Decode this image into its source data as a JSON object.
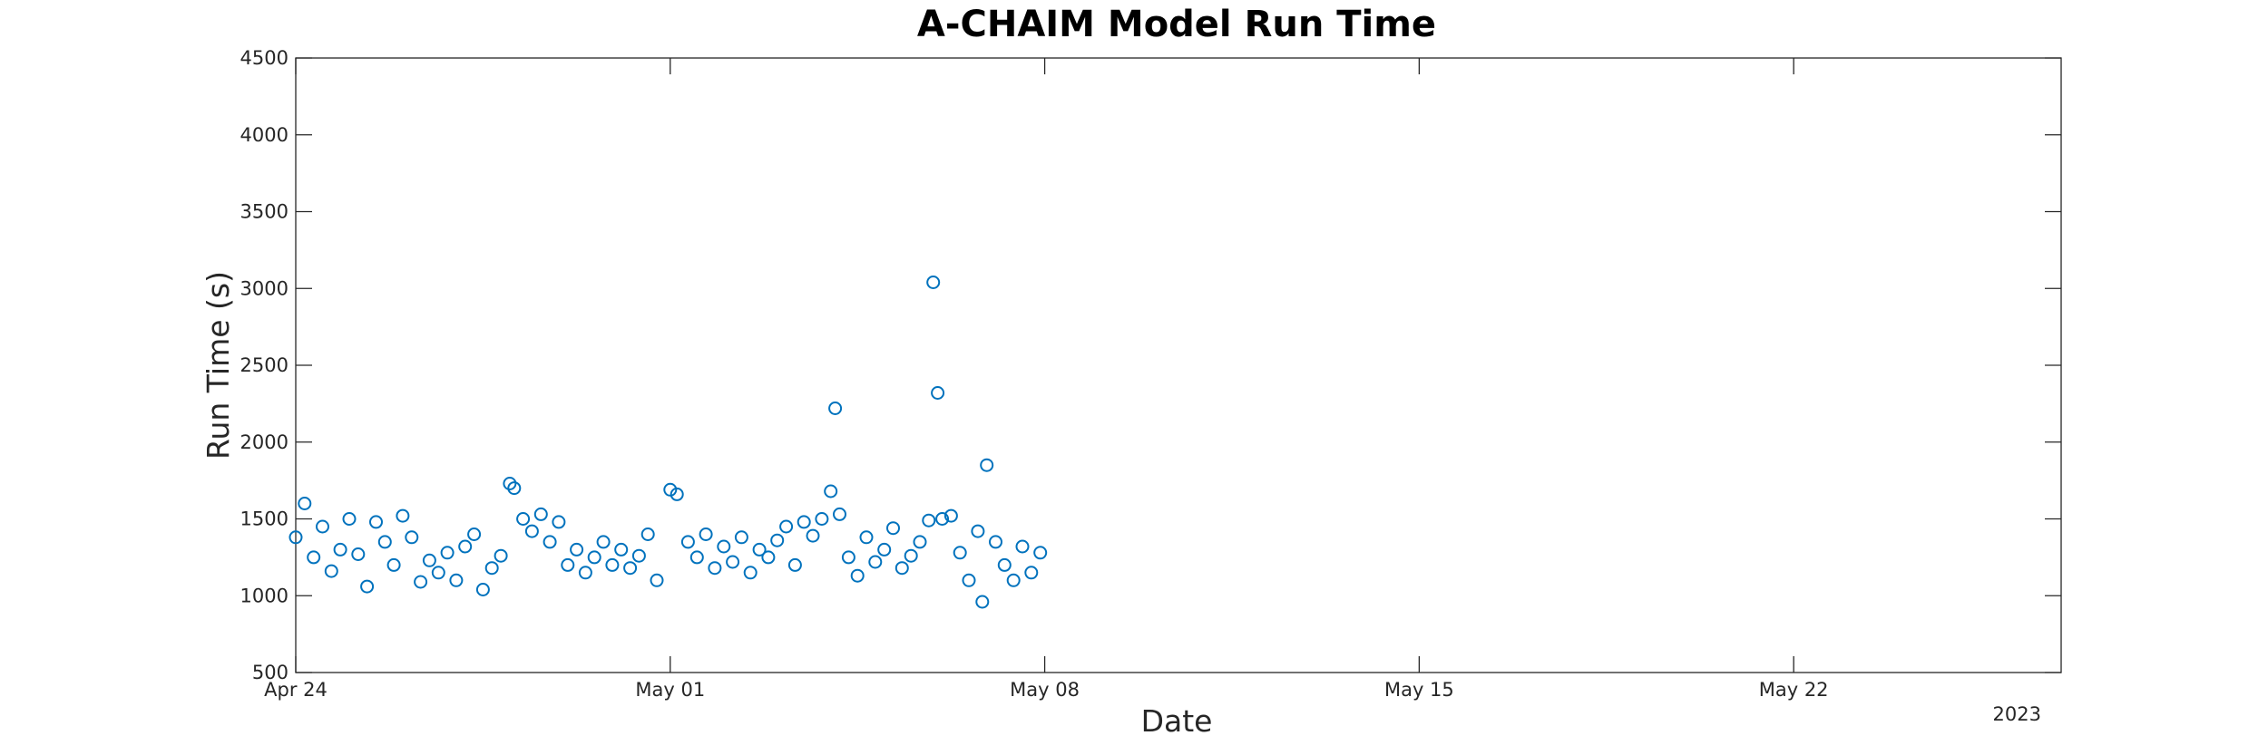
{
  "chart_data": {
    "type": "scatter",
    "title": "A-CHAIM Model Run Time",
    "xlabel": "Date",
    "ylabel": "Run Time (s)",
    "year_label": "2023",
    "marker": "circle-open",
    "color": "#0072BD",
    "grid": false,
    "legend": "none",
    "xlim": [
      "2023-04-24",
      "2023-05-27"
    ],
    "ylim": [
      500,
      4500
    ],
    "x_ticks": [
      {
        "date": "2023-04-24",
        "label": "Apr 24"
      },
      {
        "date": "2023-05-01",
        "label": "May 01"
      },
      {
        "date": "2023-05-08",
        "label": "May 08"
      },
      {
        "date": "2023-05-15",
        "label": "May 15"
      },
      {
        "date": "2023-05-22",
        "label": "May 22"
      }
    ],
    "y_ticks": [
      500,
      1000,
      1500,
      2000,
      2500,
      3000,
      3500,
      4000,
      4500
    ],
    "sampling_note": "Runs roughly every hour from 2023-04-24 to 2023-05-26; representative subset of points read from the figure.",
    "points": [
      [
        "2023-04-24T00:00",
        1380
      ],
      [
        "2023-04-24T04:00",
        1600
      ],
      [
        "2023-04-24T08:00",
        1250
      ],
      [
        "2023-04-24T12:00",
        1450
      ],
      [
        "2023-04-24T16:00",
        1160
      ],
      [
        "2023-04-24T20:00",
        1300
      ],
      [
        "2023-04-25T00:00",
        1500
      ],
      [
        "2023-04-25T04:00",
        1270
      ],
      [
        "2023-04-25T08:00",
        1060
      ],
      [
        "2023-04-25T12:00",
        1480
      ],
      [
        "2023-04-25T16:00",
        1350
      ],
      [
        "2023-04-25T20:00",
        1200
      ],
      [
        "2023-04-26T00:00",
        1520
      ],
      [
        "2023-04-26T04:00",
        1380
      ],
      [
        "2023-04-26T08:00",
        1090
      ],
      [
        "2023-04-26T12:00",
        1230
      ],
      [
        "2023-04-26T16:00",
        1150
      ],
      [
        "2023-04-26T20:00",
        1280
      ],
      [
        "2023-04-27T00:00",
        1100
      ],
      [
        "2023-04-27T04:00",
        1320
      ],
      [
        "2023-04-27T08:00",
        1400
      ],
      [
        "2023-04-27T12:00",
        1040
      ],
      [
        "2023-04-27T16:00",
        1180
      ],
      [
        "2023-04-27T20:00",
        1260
      ],
      [
        "2023-04-28T00:00",
        1730
      ],
      [
        "2023-04-28T02:00",
        1700
      ],
      [
        "2023-04-28T06:00",
        1500
      ],
      [
        "2023-04-28T10:00",
        1420
      ],
      [
        "2023-04-28T14:00",
        1530
      ],
      [
        "2023-04-28T18:00",
        1350
      ],
      [
        "2023-04-28T22:00",
        1480
      ],
      [
        "2023-04-29T02:00",
        1200
      ],
      [
        "2023-04-29T06:00",
        1300
      ],
      [
        "2023-04-29T10:00",
        1150
      ],
      [
        "2023-04-29T14:00",
        1250
      ],
      [
        "2023-04-29T18:00",
        1350
      ],
      [
        "2023-04-29T22:00",
        1200
      ],
      [
        "2023-04-30T02:00",
        1300
      ],
      [
        "2023-04-30T06:00",
        1180
      ],
      [
        "2023-04-30T10:00",
        1260
      ],
      [
        "2023-04-30T14:00",
        1400
      ],
      [
        "2023-04-30T18:00",
        1100
      ],
      [
        "2023-05-01T00:00",
        1690
      ],
      [
        "2023-05-01T03:00",
        1660
      ],
      [
        "2023-05-01T08:00",
        1350
      ],
      [
        "2023-05-01T12:00",
        1250
      ],
      [
        "2023-05-01T16:00",
        1400
      ],
      [
        "2023-05-01T20:00",
        1180
      ],
      [
        "2023-05-02T00:00",
        1320
      ],
      [
        "2023-05-02T04:00",
        1220
      ],
      [
        "2023-05-02T08:00",
        1380
      ],
      [
        "2023-05-02T12:00",
        1150
      ],
      [
        "2023-05-02T16:00",
        1300
      ],
      [
        "2023-05-02T20:00",
        1250
      ],
      [
        "2023-05-03T00:00",
        1360
      ],
      [
        "2023-05-03T04:00",
        1450
      ],
      [
        "2023-05-03T08:00",
        1200
      ],
      [
        "2023-05-03T12:00",
        1480
      ],
      [
        "2023-05-03T16:00",
        1390
      ],
      [
        "2023-05-03T20:00",
        1500
      ],
      [
        "2023-05-04T00:00",
        1680
      ],
      [
        "2023-05-04T02:00",
        2220
      ],
      [
        "2023-05-04T04:00",
        1530
      ],
      [
        "2023-05-04T08:00",
        1250
      ],
      [
        "2023-05-04T12:00",
        1130
      ],
      [
        "2023-05-04T16:00",
        1380
      ],
      [
        "2023-05-04T20:00",
        1220
      ],
      [
        "2023-05-05T00:00",
        1300
      ],
      [
        "2023-05-05T04:00",
        1440
      ],
      [
        "2023-05-05T08:00",
        1180
      ],
      [
        "2023-05-05T12:00",
        1260
      ],
      [
        "2023-05-05T16:00",
        1350
      ],
      [
        "2023-05-05T20:00",
        1490
      ],
      [
        "2023-05-05T22:00",
        3040
      ],
      [
        "2023-05-06T00:00",
        2320
      ],
      [
        "2023-05-06T02:00",
        1500
      ],
      [
        "2023-05-06T06:00",
        1520
      ],
      [
        "2023-05-06T10:00",
        1280
      ],
      [
        "2023-05-06T14:00",
        1100
      ],
      [
        "2023-05-06T18:00",
        1420
      ],
      [
        "2023-05-06T20:00",
        960
      ],
      [
        "2023-05-06T22:00",
        1850
      ],
      [
        "2023-05-07T02:00",
        1350
      ],
      [
        "2023-05-07T06:00",
        1200
      ],
      [
        "2023-05-07T10:00",
        1100
      ],
      [
        "2023-05-07T14:00",
        1320
      ],
      [
        "2023-05-07T18:00",
        1150
      ],
      [
        "2023-05-07T22:00",
        1280
      ]
    ]
  }
}
